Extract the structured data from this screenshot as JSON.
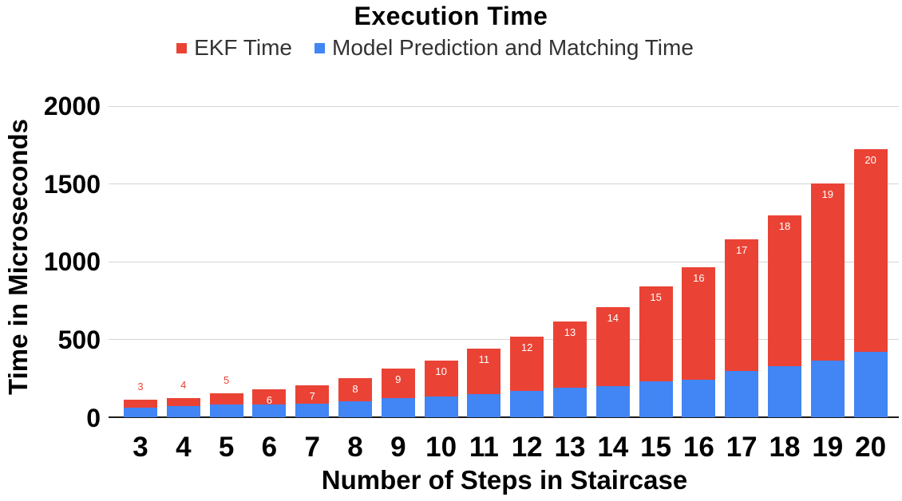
{
  "title": "Execution Time",
  "legend": {
    "items": [
      {
        "label": "EKF Time",
        "color": "#EA4335"
      },
      {
        "label": "Model Prediction and Matching Time",
        "color": "#4285F4"
      }
    ]
  },
  "axes": {
    "x_title": "Number of Steps in Staircase",
    "y_title": "Time in Microseconds"
  },
  "colors": {
    "ekf_red": "#EA4335",
    "model_blue": "#4285F4",
    "gridline": "#d5d5d5",
    "axis_line": "#1a1a1a",
    "label_inside": "#ffffff",
    "label_outside": "#EA4335",
    "text": "#000000",
    "legend_text": "#333333"
  },
  "chart_data": {
    "type": "bar",
    "stacked": true,
    "title": "Execution Time",
    "xlabel": "Number of Steps in Staircase",
    "ylabel": "Time in Microseconds",
    "categories": [
      "3",
      "4",
      "5",
      "6",
      "7",
      "8",
      "9",
      "10",
      "11",
      "12",
      "13",
      "14",
      "15",
      "16",
      "17",
      "18",
      "19",
      "20"
    ],
    "series": [
      {
        "name": "Model Prediction and Matching Time",
        "color": "#4285F4",
        "values": [
          62,
          72,
          82,
          86,
          91,
          105,
          125,
          134,
          153,
          174,
          191,
          200,
          234,
          243,
          301,
          328,
          366,
          422
        ]
      },
      {
        "name": "EKF Time",
        "color": "#EA4335",
        "values": [
          53,
          55,
          73,
          96,
          119,
          150,
          190,
          231,
          292,
          346,
          424,
          512,
          611,
          722,
          844,
          972,
          1137,
          1303
        ]
      }
    ],
    "totals": [
      115,
      127,
      155,
      182,
      210,
      255,
      315,
      365,
      445,
      520,
      615,
      712,
      845,
      965,
      1145,
      1300,
      1503,
      1725
    ],
    "bar_labels": [
      "3",
      "4",
      "5",
      "6",
      "7",
      "8",
      "9",
      "10",
      "11",
      "12",
      "13",
      "14",
      "15",
      "16",
      "17",
      "18",
      "19",
      "20"
    ],
    "y_ticks": [
      0,
      500,
      1000,
      1500,
      2000
    ],
    "ylim": [
      0,
      2000
    ],
    "grid": true,
    "legend_position": "top"
  }
}
